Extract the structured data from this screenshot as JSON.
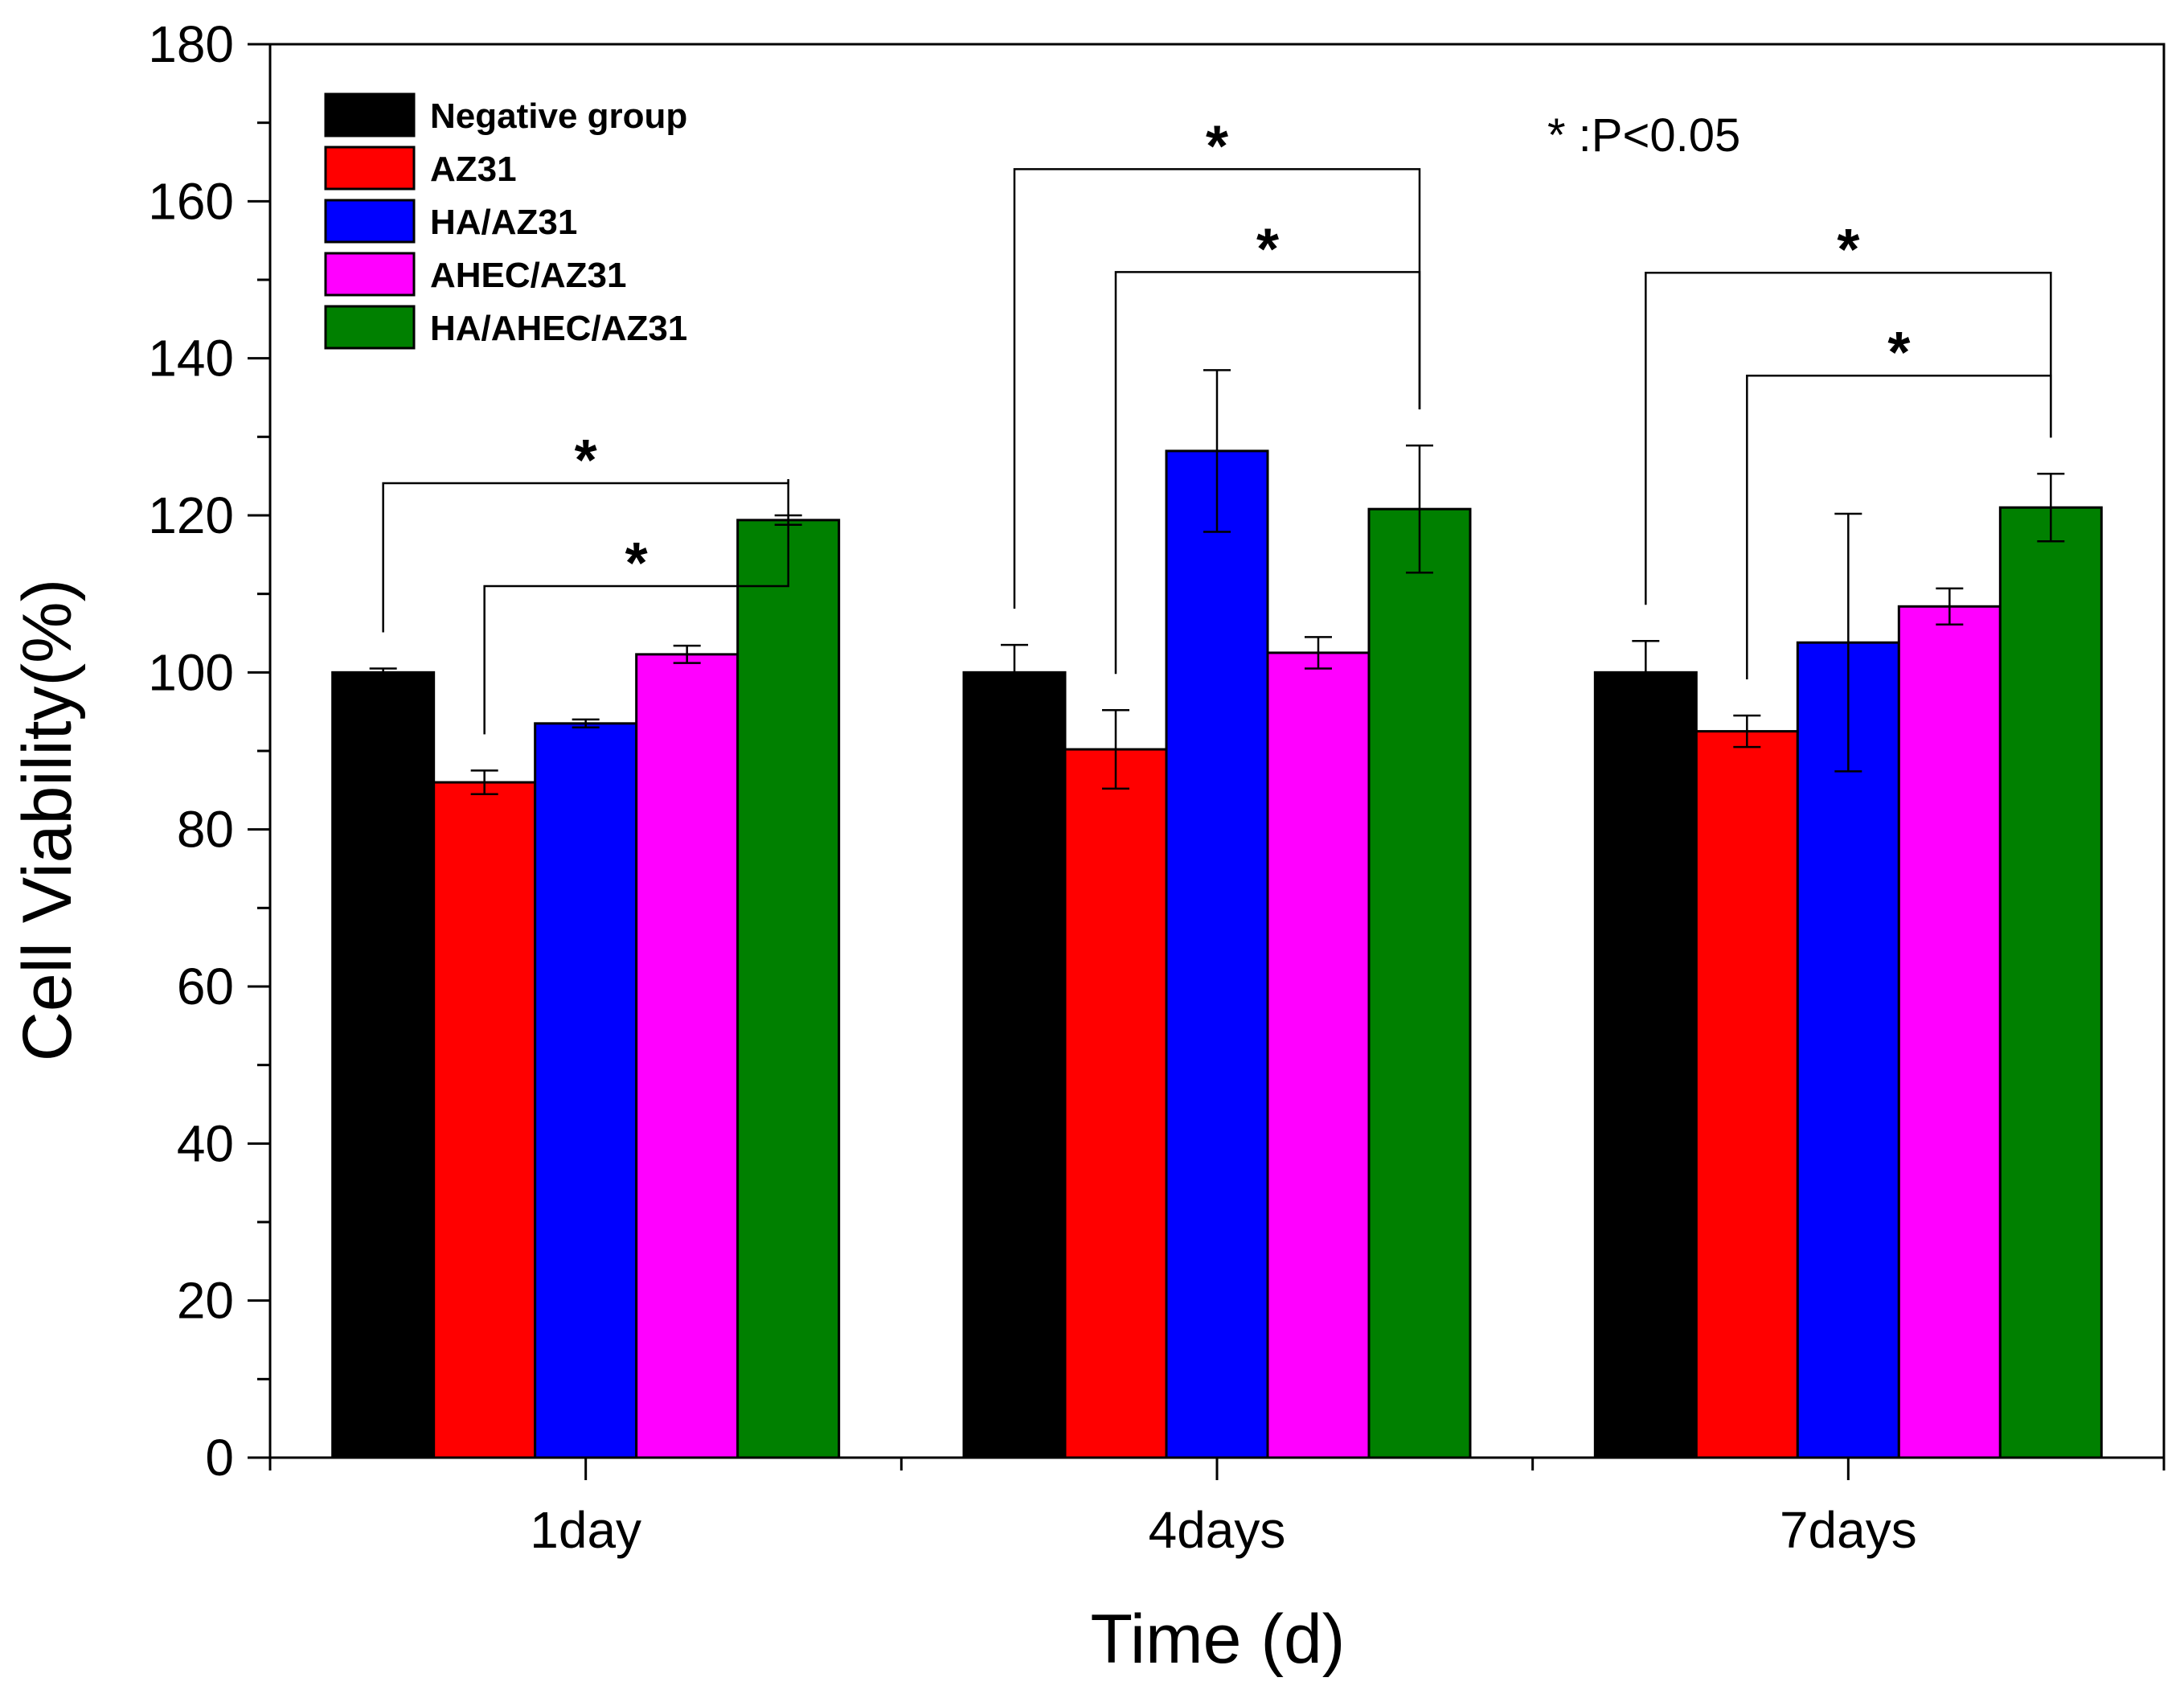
{
  "chart_data": {
    "type": "bar",
    "title": "",
    "xlabel": "Time (d)",
    "ylabel": "Cell Viability(%)",
    "ylim": [
      0,
      180
    ],
    "yticks": [
      0,
      20,
      40,
      60,
      80,
      100,
      120,
      140,
      160,
      180
    ],
    "categories": [
      "1day",
      "4days",
      "7days"
    ],
    "series": [
      {
        "name": "Negative group",
        "color": "#000000",
        "values": [
          100,
          100,
          100
        ],
        "errors": [
          0.5,
          3.5,
          4.0
        ]
      },
      {
        "name": "AZ31",
        "color": "#ff0000",
        "values": [
          86,
          90.2,
          92.5
        ],
        "errors": [
          1.5,
          5.0,
          2.0
        ]
      },
      {
        "name": "HA/AZ31",
        "color": "#0000ff",
        "values": [
          93.5,
          128.2,
          103.8
        ],
        "errors": [
          0.5,
          10.3,
          16.4
        ]
      },
      {
        "name": "AHEC/AZ31",
        "color": "#ff00ff",
        "values": [
          102.3,
          102.5,
          108.4
        ],
        "errors": [
          1.1,
          2.0,
          2.3
        ]
      },
      {
        "name": "HA/AHEC/AZ31",
        "color": "#008000",
        "values": [
          119.4,
          120.8,
          121.0
        ],
        "errors": [
          0.6,
          8.1,
          4.3
        ]
      }
    ],
    "legend_position": "top-left",
    "annotation": "* :P<0.05",
    "significance": [
      {
        "category": "1day",
        "from_series": 0,
        "to_series": 4,
        "label": "*"
      },
      {
        "category": "1day",
        "from_series": 1,
        "to_series": 4,
        "label": "*"
      },
      {
        "category": "4days",
        "from_series": 0,
        "to_series": 4,
        "label": "*"
      },
      {
        "category": "4days",
        "from_series": 1,
        "to_series": 4,
        "label": "*"
      },
      {
        "category": "7days",
        "from_series": 0,
        "to_series": 4,
        "label": "*"
      },
      {
        "category": "7days",
        "from_series": 1,
        "to_series": 4,
        "label": "*"
      }
    ]
  }
}
